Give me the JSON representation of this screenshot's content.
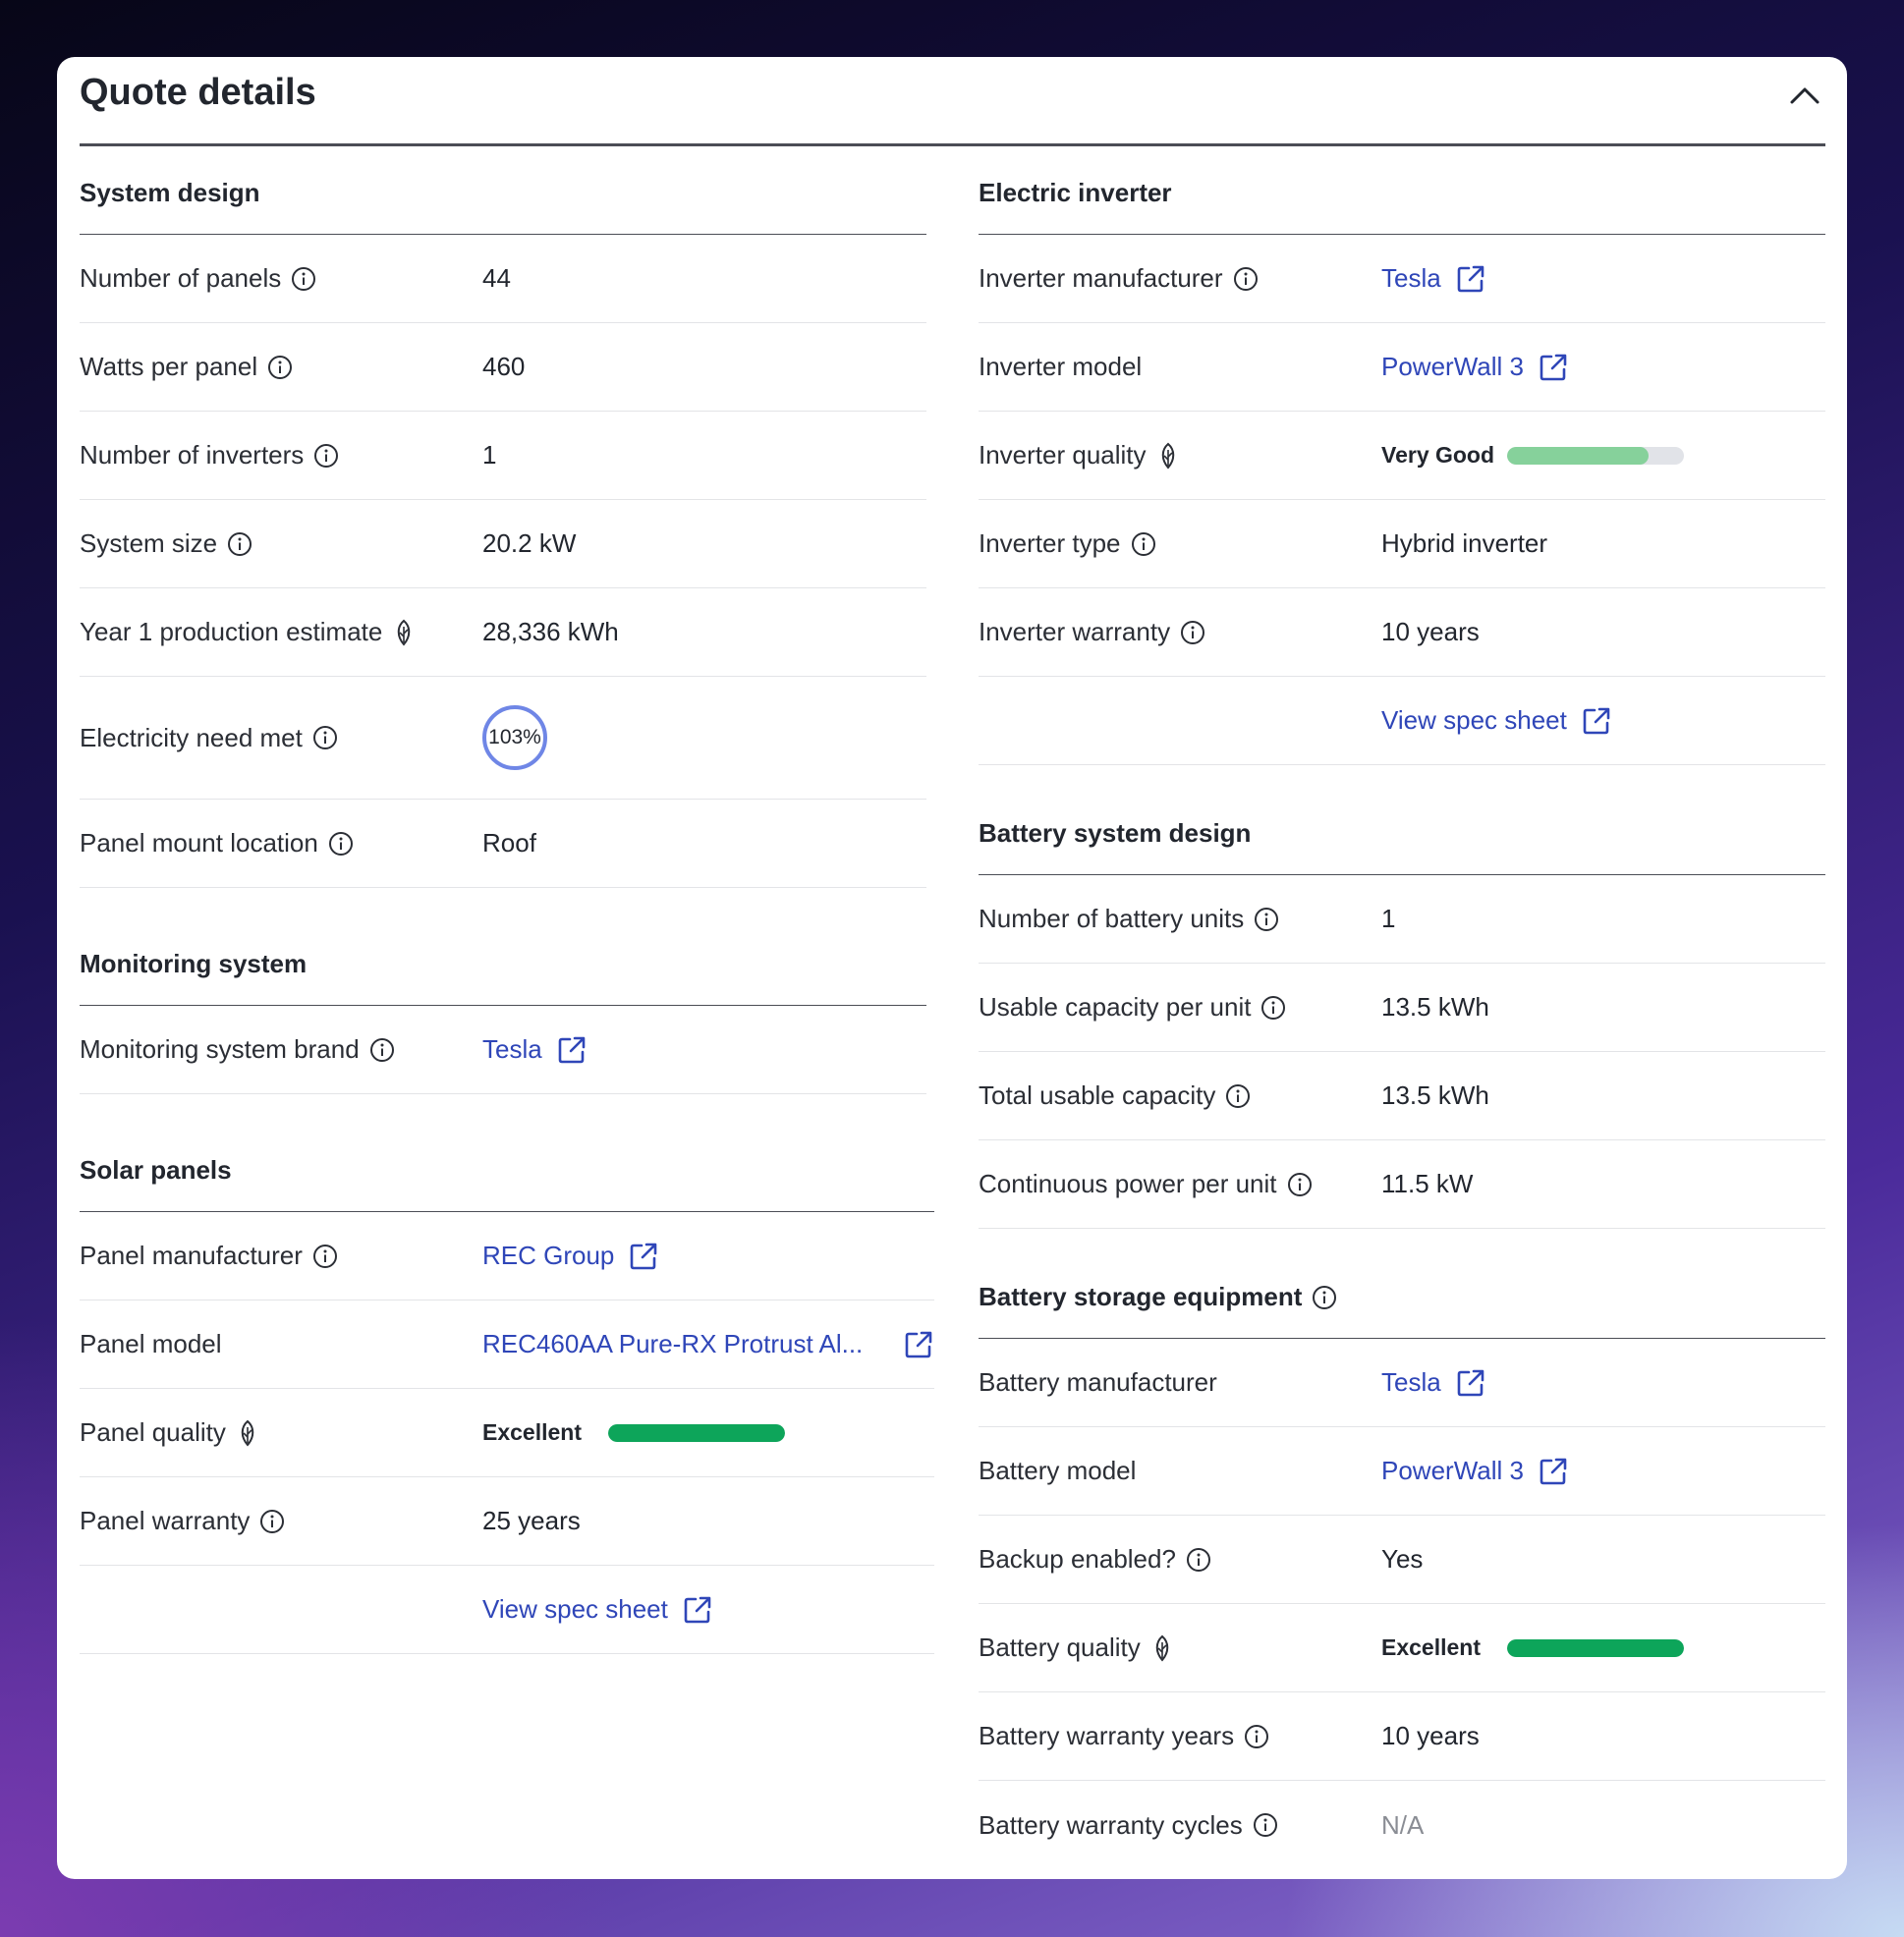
{
  "title": "Quote details",
  "system_design": {
    "heading": "System design",
    "rows": [
      {
        "label": "Number of panels",
        "value": "44"
      },
      {
        "label": "Watts per panel",
        "value": "460"
      },
      {
        "label": "Number of inverters",
        "value": "1"
      },
      {
        "label": "System size",
        "value": "20.2 kW"
      },
      {
        "label": "Year 1 production estimate",
        "value": "28,336 kWh"
      },
      {
        "label": "Electricity need met",
        "value": "103%"
      },
      {
        "label": "Panel mount location",
        "value": "Roof"
      }
    ]
  },
  "monitoring": {
    "heading": "Monitoring system",
    "brand_label": "Monitoring system brand",
    "brand_value": "Tesla"
  },
  "solar_panels": {
    "heading": "Solar panels",
    "manufacturer_label": "Panel manufacturer",
    "manufacturer_value": "REC Group",
    "model_label": "Panel model",
    "model_value": "REC460AA Pure-RX Protrust Al...",
    "quality_label": "Panel quality",
    "quality_value": "Excellent",
    "quality_level": 1.0,
    "warranty_label": "Panel warranty",
    "warranty_value": "25 years",
    "spec_sheet": "View spec sheet"
  },
  "electric_inverter": {
    "heading": "Electric inverter",
    "manufacturer_label": "Inverter manufacturer",
    "manufacturer_value": "Tesla",
    "model_label": "Inverter model",
    "model_value": "PowerWall 3",
    "quality_label": "Inverter quality",
    "quality_value": "Very Good",
    "quality_level": 0.8,
    "type_label": "Inverter type",
    "type_value": "Hybrid inverter",
    "warranty_label": "Inverter warranty",
    "warranty_value": "10 years",
    "spec_sheet": "View spec sheet"
  },
  "battery_design": {
    "heading": "Battery system design",
    "rows": [
      {
        "label": "Number of battery units",
        "value": "1"
      },
      {
        "label": "Usable capacity per unit",
        "value": "13.5 kWh"
      },
      {
        "label": "Total usable capacity",
        "value": "13.5 kWh"
      },
      {
        "label": "Continuous power per unit",
        "value": "11.5 kW"
      }
    ]
  },
  "battery_storage": {
    "heading": "Battery storage equipment",
    "manufacturer_label": "Battery manufacturer",
    "manufacturer_value": "Tesla",
    "model_label": "Battery model",
    "model_value": "PowerWall 3",
    "backup_label": "Backup enabled?",
    "backup_value": "Yes",
    "quality_label": "Battery quality",
    "quality_value": "Excellent",
    "quality_level": 1.0,
    "warranty_years_label": "Battery warranty years",
    "warranty_years_value": "10 years",
    "warranty_cycles_label": "Battery warranty cycles",
    "warranty_cycles_value": "N/A"
  },
  "colors": {
    "link": "#2f46b8",
    "quality_excellent": "#0da55a",
    "quality_very_good": "#86d19b",
    "ring": "#6f86e6"
  }
}
